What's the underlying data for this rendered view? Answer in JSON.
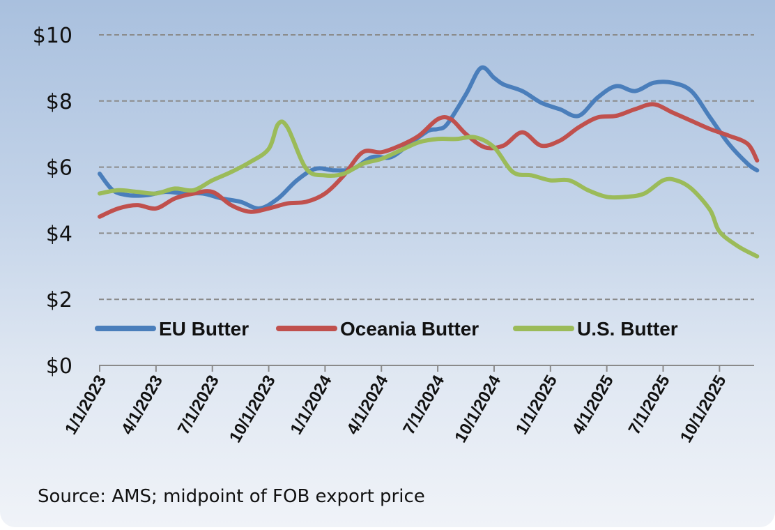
{
  "chart_data": {
    "type": "line",
    "title": "",
    "xlabel": "",
    "ylabel": "",
    "ylim": [
      0,
      10
    ],
    "y_ticks": [
      0,
      2,
      4,
      6,
      8,
      10
    ],
    "y_tick_labels": [
      "$0",
      "$2",
      "$4",
      "$6",
      "$8",
      "$10"
    ],
    "grid": true,
    "legend_position": "middle-left",
    "x_tick_labels": [
      "1/1/2023",
      "4/1/2023",
      "7/1/2023",
      "10/1/2023",
      "1/1/2024",
      "4/1/2024",
      "7/1/2024",
      "10/1/2024",
      "1/1/2025",
      "4/1/2025",
      "7/1/2025",
      "10/1/2025"
    ],
    "x_months": [
      0,
      3,
      6,
      9,
      12,
      15,
      18,
      21,
      24,
      27,
      30,
      33
    ],
    "x_range_months": [
      0,
      35
    ],
    "series": [
      {
        "name": "EU Butter",
        "color": "#4a7ebb",
        "points": [
          [
            0,
            5.8
          ],
          [
            0.7,
            5.3
          ],
          [
            1.5,
            5.15
          ],
          [
            2.5,
            5.15
          ],
          [
            3.5,
            5.25
          ],
          [
            4.5,
            5.2
          ],
          [
            5.5,
            5.2
          ],
          [
            6.5,
            5.05
          ],
          [
            7.5,
            4.95
          ],
          [
            8.5,
            4.75
          ],
          [
            9.5,
            5.05
          ],
          [
            10.5,
            5.6
          ],
          [
            11.5,
            5.95
          ],
          [
            12.5,
            5.9
          ],
          [
            13.5,
            5.95
          ],
          [
            14.5,
            6.3
          ],
          [
            15.5,
            6.3
          ],
          [
            16.5,
            6.7
          ],
          [
            17.5,
            7.1
          ],
          [
            18,
            7.15
          ],
          [
            18.5,
            7.3
          ],
          [
            19.5,
            8.2
          ],
          [
            20.3,
            9.0
          ],
          [
            21,
            8.7
          ],
          [
            21.5,
            8.5
          ],
          [
            22.5,
            8.3
          ],
          [
            23.5,
            7.95
          ],
          [
            24.5,
            7.75
          ],
          [
            25.5,
            7.55
          ],
          [
            26.5,
            8.1
          ],
          [
            27.5,
            8.45
          ],
          [
            28.5,
            8.3
          ],
          [
            29.5,
            8.55
          ],
          [
            30.5,
            8.55
          ],
          [
            31.5,
            8.3
          ],
          [
            32.5,
            7.5
          ],
          [
            33.5,
            6.7
          ],
          [
            34.5,
            6.1
          ],
          [
            35,
            5.9
          ]
        ]
      },
      {
        "name": "Oceania Butter",
        "color": "#c0504d",
        "points": [
          [
            0,
            4.5
          ],
          [
            1,
            4.75
          ],
          [
            2,
            4.85
          ],
          [
            3,
            4.75
          ],
          [
            4,
            5.05
          ],
          [
            5,
            5.2
          ],
          [
            6,
            5.25
          ],
          [
            7,
            4.85
          ],
          [
            8,
            4.65
          ],
          [
            9,
            4.75
          ],
          [
            10,
            4.9
          ],
          [
            11,
            4.95
          ],
          [
            12,
            5.2
          ],
          [
            13,
            5.75
          ],
          [
            14,
            6.45
          ],
          [
            15,
            6.45
          ],
          [
            16,
            6.65
          ],
          [
            17,
            6.95
          ],
          [
            18,
            7.45
          ],
          [
            18.7,
            7.45
          ],
          [
            19.5,
            7.0
          ],
          [
            20.5,
            6.6
          ],
          [
            21.5,
            6.65
          ],
          [
            22.5,
            7.05
          ],
          [
            23.5,
            6.65
          ],
          [
            24.5,
            6.8
          ],
          [
            25.5,
            7.2
          ],
          [
            26.5,
            7.5
          ],
          [
            27.5,
            7.55
          ],
          [
            28.5,
            7.75
          ],
          [
            29.5,
            7.9
          ],
          [
            30.5,
            7.65
          ],
          [
            31.5,
            7.4
          ],
          [
            32.5,
            7.15
          ],
          [
            33.5,
            6.95
          ],
          [
            34.5,
            6.7
          ],
          [
            35,
            6.2
          ]
        ]
      },
      {
        "name": "U.S. Butter",
        "color": "#9bbb59",
        "points": [
          [
            0,
            5.2
          ],
          [
            1,
            5.3
          ],
          [
            2,
            5.25
          ],
          [
            3,
            5.2
          ],
          [
            4,
            5.35
          ],
          [
            5,
            5.3
          ],
          [
            6,
            5.6
          ],
          [
            7,
            5.85
          ],
          [
            8,
            6.15
          ],
          [
            9,
            6.55
          ],
          [
            9.5,
            7.3
          ],
          [
            10,
            7.2
          ],
          [
            11,
            5.95
          ],
          [
            12,
            5.75
          ],
          [
            13,
            5.8
          ],
          [
            14,
            6.1
          ],
          [
            15,
            6.25
          ],
          [
            16,
            6.5
          ],
          [
            17,
            6.75
          ],
          [
            18,
            6.85
          ],
          [
            19,
            6.85
          ],
          [
            20,
            6.9
          ],
          [
            21,
            6.6
          ],
          [
            22,
            5.85
          ],
          [
            23,
            5.75
          ],
          [
            24,
            5.6
          ],
          [
            25,
            5.6
          ],
          [
            26,
            5.3
          ],
          [
            27,
            5.1
          ],
          [
            28,
            5.1
          ],
          [
            29,
            5.2
          ],
          [
            30,
            5.6
          ],
          [
            30.7,
            5.6
          ],
          [
            31.5,
            5.35
          ],
          [
            32.5,
            4.7
          ],
          [
            33,
            4.05
          ],
          [
            34,
            3.6
          ],
          [
            35,
            3.3
          ]
        ]
      }
    ]
  },
  "source_note": "Source: AMS; midpoint of FOB export price"
}
